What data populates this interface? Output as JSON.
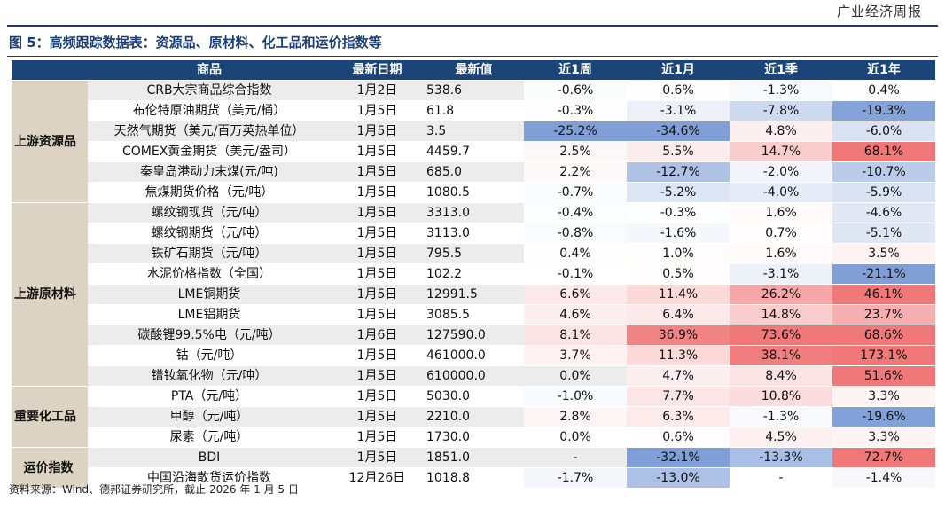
{
  "header": {
    "brand": "广业经济周报"
  },
  "figure": {
    "title": "图 5：高频跟踪数据表：资源品、原材料、化工品和运价指数等"
  },
  "table": {
    "columns": [
      "",
      "商品",
      "最新日期",
      "最新值",
      "近1周",
      "近1月",
      "近1季",
      "近1年"
    ],
    "groups": [
      {
        "label": "上游资源品",
        "start": 0,
        "span": 6
      },
      {
        "label": "上游原材料",
        "start": 6,
        "span": 9
      },
      {
        "label": "重要化工品",
        "start": 15,
        "span": 3
      },
      {
        "label": "运价指数",
        "start": 18,
        "span": 2
      }
    ],
    "rows": [
      {
        "name": "CRB大宗商品综合指数",
        "date": "1月2日",
        "value": "538.6",
        "w": "-0.6%",
        "m": "0.6%",
        "q": "-1.3%",
        "y": "0.4%"
      },
      {
        "name": "布伦特原油期货（美元/桶）",
        "date": "1月5日",
        "value": "61.8",
        "w": "-0.3%",
        "m": "-3.1%",
        "q": "-7.8%",
        "y": "-19.3%"
      },
      {
        "name": "天然气期货（美元/百万英热单位）",
        "date": "1月5日",
        "value": "3.5",
        "w": "-25.2%",
        "m": "-34.6%",
        "q": "4.8%",
        "y": "-6.0%"
      },
      {
        "name": "COMEX黄金期货（美元/盎司）",
        "date": "1月5日",
        "value": "4459.7",
        "w": "2.5%",
        "m": "5.5%",
        "q": "14.7%",
        "y": "68.1%"
      },
      {
        "name": "秦皇岛港动力末煤(元/吨)",
        "date": "1月5日",
        "value": "685.0",
        "w": "2.2%",
        "m": "-12.7%",
        "q": "-2.0%",
        "y": "-10.7%"
      },
      {
        "name": "焦煤期货价格（元/吨）",
        "date": "1月5日",
        "value": "1080.5",
        "w": "-0.7%",
        "m": "-5.2%",
        "q": "-4.0%",
        "y": "-5.9%"
      },
      {
        "name": "螺纹钢现货（元/吨）",
        "date": "1月5日",
        "value": "3313.0",
        "w": "-0.4%",
        "m": "-0.3%",
        "q": "1.6%",
        "y": "-4.6%"
      },
      {
        "name": "螺纹钢期货（元/吨）",
        "date": "1月5日",
        "value": "3113.0",
        "w": "-0.8%",
        "m": "-1.6%",
        "q": "0.7%",
        "y": "-5.1%"
      },
      {
        "name": "铁矿石期货（元/吨）",
        "date": "1月5日",
        "value": "795.5",
        "w": "0.4%",
        "m": "1.0%",
        "q": "1.6%",
        "y": "3.5%"
      },
      {
        "name": "水泥价格指数（全国）",
        "date": "1月5日",
        "value": "102.2",
        "w": "-0.1%",
        "m": "0.5%",
        "q": "-3.1%",
        "y": "-21.1%"
      },
      {
        "name": "LME铜期货",
        "date": "1月5日",
        "value": "12991.5",
        "w": "6.6%",
        "m": "11.4%",
        "q": "26.2%",
        "y": "46.1%"
      },
      {
        "name": "LME铝期货",
        "date": "1月5日",
        "value": "3085.5",
        "w": "4.6%",
        "m": "6.4%",
        "q": "14.8%",
        "y": "23.7%"
      },
      {
        "name": "碳酸锂99.5%电（元/吨）",
        "date": "1月6日",
        "value": "127590.0",
        "w": "8.1%",
        "m": "36.9%",
        "q": "73.6%",
        "y": "68.6%"
      },
      {
        "name": "钴（元/吨）",
        "date": "1月5日",
        "value": "461000.0",
        "w": "3.7%",
        "m": "11.3%",
        "q": "38.1%",
        "y": "173.1%"
      },
      {
        "name": "镨钕氧化物（元/吨）",
        "date": "1月5日",
        "value": "610000.0",
        "w": "0.0%",
        "m": "4.7%",
        "q": "8.4%",
        "y": "51.6%"
      },
      {
        "name": "PTA（元/吨）",
        "date": "1月5日",
        "value": "5030.0",
        "w": "-1.0%",
        "m": "7.7%",
        "q": "10.8%",
        "y": "3.3%"
      },
      {
        "name": "甲醇（元/吨）",
        "date": "1月5日",
        "value": "2210.0",
        "w": "2.8%",
        "m": "6.3%",
        "q": "-1.3%",
        "y": "-19.6%"
      },
      {
        "name": "尿素（元/吨）",
        "date": "1月5日",
        "value": "1730.0",
        "w": "0.0%",
        "m": "0.6%",
        "q": "4.5%",
        "y": "3.3%"
      },
      {
        "name": "BDI",
        "date": "1月5日",
        "value": "1851.0",
        "w": "-",
        "m": "-32.1%",
        "q": "-13.3%",
        "y": "72.7%"
      },
      {
        "name": "中国沿海散货运价指数",
        "date": "12月26日",
        "value": "1018.8",
        "w": "-1.7%",
        "m": "-13.0%",
        "q": "-",
        "y": "-1.4%"
      }
    ]
  },
  "colors": {
    "header_bg": "#1b4478",
    "group_bg": "#ddd3c2",
    "title": "#1a3f77",
    "red_max": "#ef5a5a",
    "blue_max": "#5f8ad0"
  },
  "footer": {
    "source": "资料来源：Wind、德邦证券研究所，截止 2026 年 1 月 5 日"
  }
}
